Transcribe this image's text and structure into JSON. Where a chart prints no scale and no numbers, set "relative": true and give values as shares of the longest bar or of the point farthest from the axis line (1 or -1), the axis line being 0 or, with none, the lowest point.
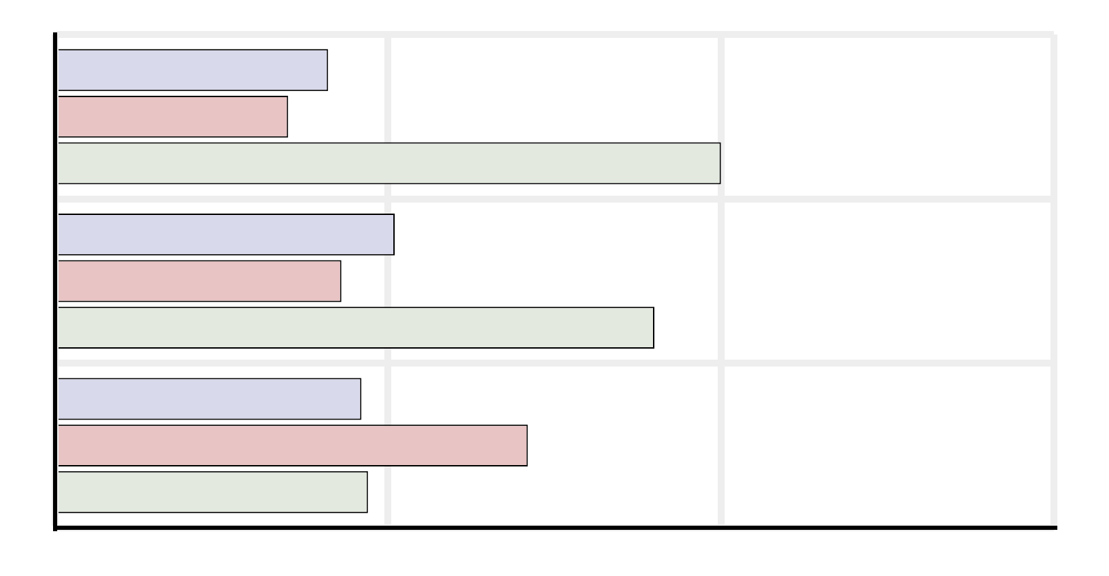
{
  "chart_data": {
    "type": "bar",
    "orientation": "horizontal",
    "relative": true,
    "grid": true,
    "categories": [
      null,
      null,
      null
    ],
    "series": [
      {
        "color": "#d9d9ec",
        "values": [
          0.41,
          0.51,
          0.46
        ]
      },
      {
        "color": "#e8c4c4",
        "values": [
          0.35,
          0.43,
          0.71
        ]
      },
      {
        "color": "#e3e9df",
        "values": [
          1,
          0.9,
          0.47
        ]
      }
    ]
  }
}
